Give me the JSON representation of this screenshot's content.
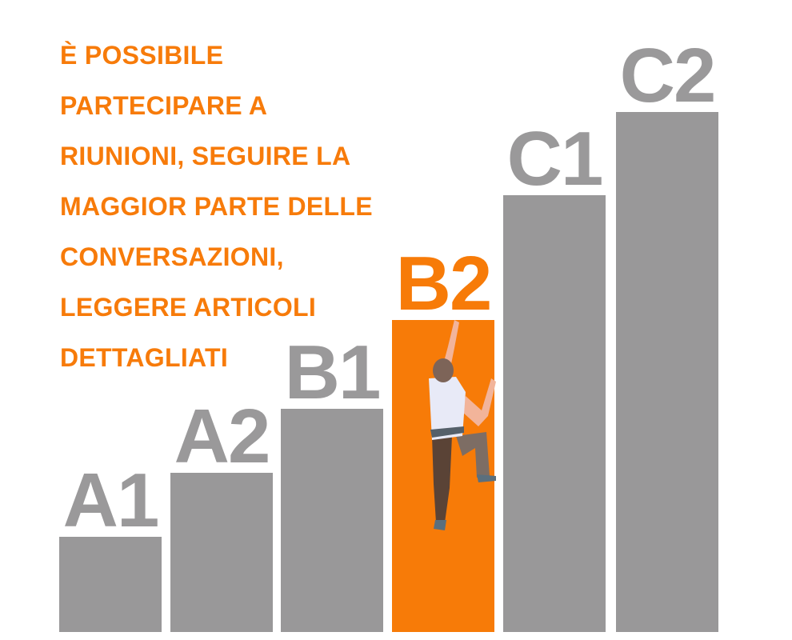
{
  "description_lines": [
    "È POSSIBILE",
    "PARTECIPARE A",
    "RIUNIONI, SEGUIRE LA",
    "MAGGIOR PARTE DELLE",
    "CONVERSAZIONI,",
    "LEGGERE ARTICOLI",
    "DETTAGLIATI"
  ],
  "levels": [
    {
      "label": "A1",
      "active": false
    },
    {
      "label": "A2",
      "active": false
    },
    {
      "label": "B1",
      "active": false
    },
    {
      "label": "B2",
      "active": true
    },
    {
      "label": "C1",
      "active": false
    },
    {
      "label": "C2",
      "active": false
    }
  ],
  "colors": {
    "accent": "#f77b08",
    "bar": "#999899",
    "label": "#9a999a"
  }
}
